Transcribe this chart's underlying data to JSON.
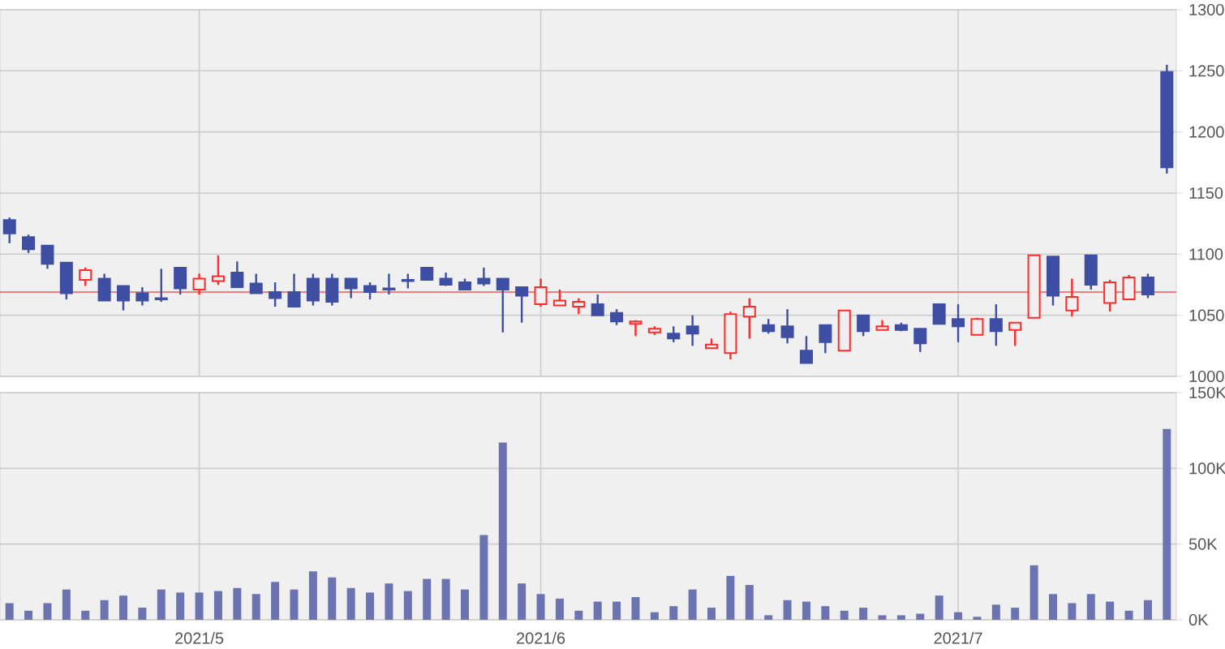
{
  "chart_data": [
    {
      "type": "candlestick",
      "categories": [
        null,
        null,
        null,
        null,
        null,
        null,
        null,
        null,
        null,
        null,
        "2021/5",
        null,
        null,
        null,
        null,
        null,
        null,
        null,
        null,
        null,
        null,
        null,
        null,
        null,
        null,
        null,
        null,
        null,
        "2021/6",
        null,
        null,
        null,
        null,
        null,
        null,
        null,
        null,
        null,
        null,
        null,
        null,
        null,
        null,
        null,
        null,
        null,
        null,
        null,
        null,
        null,
        "2021/7",
        null,
        null,
        null,
        null,
        null,
        null,
        null,
        null,
        null,
        null,
        null
      ],
      "ohlc": [
        [
          1128,
          1130,
          1109,
          1117
        ],
        [
          1114,
          1116,
          1101,
          1104
        ],
        [
          1107,
          1107,
          1088,
          1092
        ],
        [
          1093,
          1093,
          1063,
          1068
        ],
        [
          1079,
          1089,
          1074,
          1087
        ],
        [
          1080,
          1084,
          1062,
          1062
        ],
        [
          1074,
          1074,
          1054,
          1062
        ],
        [
          1068,
          1073,
          1058,
          1062
        ],
        [
          1064,
          1088,
          1061,
          1063
        ],
        [
          1089,
          1089,
          1067,
          1072
        ],
        [
          1071,
          1084,
          1067,
          1080
        ],
        [
          1078,
          1099,
          1075,
          1082
        ],
        [
          1085,
          1094,
          1073,
          1073
        ],
        [
          1076,
          1084,
          1068,
          1068
        ],
        [
          1069,
          1077,
          1057,
          1064
        ],
        [
          1069,
          1084,
          1057,
          1057
        ],
        [
          1080,
          1084,
          1058,
          1062
        ],
        [
          1080,
          1084,
          1058,
          1061
        ],
        [
          1080,
          1080,
          1064,
          1072
        ],
        [
          1074,
          1077,
          1063,
          1069
        ],
        [
          1072,
          1084,
          1067,
          1071
        ],
        [
          1079,
          1084,
          1072,
          1078
        ],
        [
          1089,
          1089,
          1079,
          1079
        ],
        [
          1080,
          1085,
          1074,
          1075
        ],
        [
          1077,
          1080,
          1071,
          1071
        ],
        [
          1080,
          1089,
          1074,
          1076
        ],
        [
          1080,
          1080,
          1036,
          1071
        ],
        [
          1073,
          1073,
          1044,
          1066
        ],
        [
          1059,
          1080,
          1057,
          1073
        ],
        [
          1058,
          1071,
          1058,
          1062
        ],
        [
          1057,
          1064,
          1051,
          1061
        ],
        [
          1059,
          1067,
          1050,
          1050
        ],
        [
          1052,
          1055,
          1042,
          1045
        ],
        [
          1043,
          1046,
          1033,
          1045
        ],
        [
          1036,
          1041,
          1034,
          1039
        ],
        [
          1035,
          1041,
          1028,
          1031
        ],
        [
          1041,
          1050,
          1025,
          1035
        ],
        [
          1023,
          1031,
          1023,
          1026
        ],
        [
          1019,
          1053,
          1014,
          1051
        ],
        [
          1049,
          1064,
          1031,
          1057
        ],
        [
          1042,
          1047,
          1035,
          1037
        ],
        [
          1041,
          1055,
          1027,
          1032
        ],
        [
          1021,
          1033,
          1011,
          1011
        ],
        [
          1042,
          1042,
          1019,
          1028
        ],
        [
          1021,
          1054,
          1021,
          1054
        ],
        [
          1050,
          1050,
          1033,
          1037
        ],
        [
          1038,
          1046,
          1038,
          1041
        ],
        [
          1042,
          1044,
          1037,
          1038
        ],
        [
          1039,
          1039,
          1020,
          1027
        ],
        [
          1059,
          1059,
          1043,
          1043
        ],
        [
          1047,
          1059,
          1028,
          1041
        ],
        [
          1034,
          1048,
          1034,
          1047
        ],
        [
          1047,
          1059,
          1025,
          1037
        ],
        [
          1038,
          1044,
          1025,
          1044
        ],
        [
          1048,
          1099,
          1048,
          1099
        ],
        [
          1098,
          1098,
          1058,
          1066
        ],
        [
          1054,
          1080,
          1049,
          1065
        ],
        [
          1099,
          1099,
          1071,
          1075
        ],
        [
          1060,
          1079,
          1053,
          1077
        ],
        [
          1063,
          1083,
          1063,
          1081
        ],
        [
          1081,
          1084,
          1064,
          1067
        ],
        [
          1249,
          1255,
          1166,
          1171
        ]
      ],
      "colors": [
        "#3d4ea3",
        "#3d4ea3",
        "#3d4ea3",
        "#3d4ea3",
        "#ff2a2a",
        "#3d4ea3",
        "#3d4ea3",
        "#3d4ea3",
        "#3d4ea3",
        "#3d4ea3",
        "#ff2a2a",
        "#ff2a2a",
        "#3d4ea3",
        "#3d4ea3",
        "#3d4ea3",
        "#3d4ea3",
        "#3d4ea3",
        "#3d4ea3",
        "#3d4ea3",
        "#3d4ea3",
        "#3d4ea3",
        "#3d4ea3",
        "#3d4ea3",
        "#3d4ea3",
        "#3d4ea3",
        "#3d4ea3",
        "#3d4ea3",
        "#3d4ea3",
        "#ff2a2a",
        "#ff2a2a",
        "#ff2a2a",
        "#3d4ea3",
        "#3d4ea3",
        "#ff2a2a",
        "#ff2a2a",
        "#3d4ea3",
        "#3d4ea3",
        "#ff2a2a",
        "#ff2a2a",
        "#ff2a2a",
        "#3d4ea3",
        "#3d4ea3",
        "#3d4ea3",
        "#3d4ea3",
        "#ff2a2a",
        "#3d4ea3",
        "#ff2a2a",
        "#3d4ea3",
        "#3d4ea3",
        "#3d4ea3",
        "#3d4ea3",
        "#ff2a2a",
        "#3d4ea3",
        "#ff2a2a",
        "#ff2a2a",
        "#3d4ea3",
        "#ff2a2a",
        "#3d4ea3",
        "#ff2a2a",
        "#ff2a2a",
        "#3d4ea3",
        "#3d4ea3"
      ],
      "ylim": [
        1000,
        1300
      ],
      "yticks": [
        1000,
        1050,
        1100,
        1150,
        1200,
        1250,
        1300
      ],
      "ref_lines": [
        {
          "axis": "y",
          "value": 1069,
          "color": "#f08080"
        }
      ],
      "grid": true,
      "tick_labels": "y"
    },
    {
      "type": "bar",
      "categories": [
        null,
        null,
        null,
        null,
        null,
        null,
        null,
        null,
        null,
        null,
        "2021/5",
        null,
        null,
        null,
        null,
        null,
        null,
        null,
        null,
        null,
        null,
        null,
        null,
        null,
        null,
        null,
        null,
        null,
        "2021/6",
        null,
        null,
        null,
        null,
        null,
        null,
        null,
        null,
        null,
        null,
        null,
        null,
        null,
        null,
        null,
        null,
        null,
        null,
        null,
        null,
        null,
        "2021/7",
        null,
        null,
        null,
        null,
        null,
        null,
        null,
        null,
        null,
        null,
        null
      ],
      "values": [
        11,
        6,
        11,
        20,
        6,
        13,
        16,
        8,
        20,
        18,
        18,
        19,
        21,
        17,
        25,
        20,
        32,
        28,
        21,
        18,
        24,
        19,
        27,
        27,
        20,
        56,
        117,
        24,
        17,
        14,
        6,
        12,
        12,
        15,
        5,
        9,
        20,
        8,
        29,
        23,
        3,
        13,
        12,
        9,
        6,
        8,
        3,
        3,
        4,
        16,
        5,
        2,
        10,
        8,
        36,
        17,
        11,
        17,
        12,
        6,
        13,
        126
      ],
      "color": "#6b74b0",
      "ylim": [
        0,
        150
      ],
      "yticks": [
        {
          "value": 0,
          "label": "0K"
        },
        {
          "value": 50,
          "label": "50K"
        },
        {
          "value": 100,
          "label": "100K"
        },
        {
          "value": 150,
          "label": "150K"
        }
      ],
      "grid": true
    }
  ]
}
